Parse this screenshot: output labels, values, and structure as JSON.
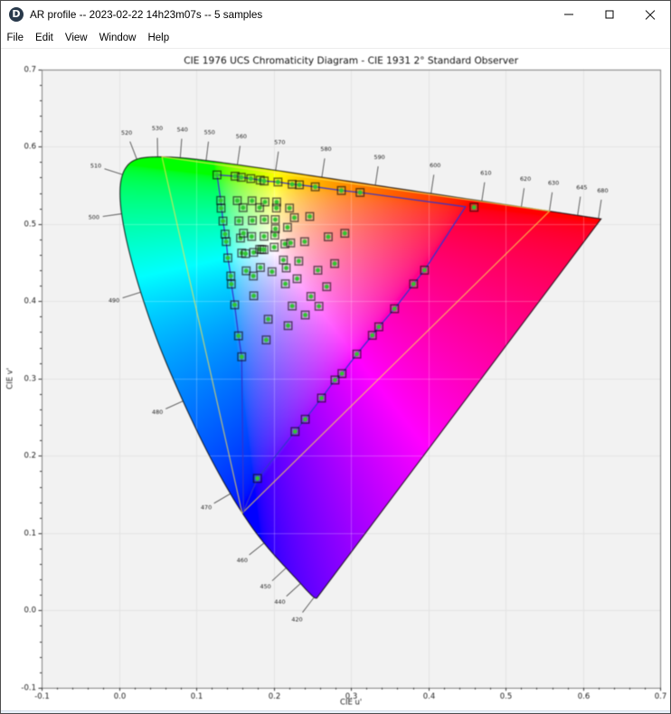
{
  "window": {
    "icon": "displaycal-logo",
    "icon_letter": "D",
    "title": "AR profile -- 2023-02-22 14h23m07s -- 5 samples",
    "controls": {
      "minimize": "Minimize",
      "maximize": "Maximize",
      "close": "Close"
    }
  },
  "menu": {
    "items": [
      "File",
      "Edit",
      "View",
      "Window",
      "Help"
    ]
  },
  "chart_data": {
    "type": "scatter",
    "title": "CIE 1976 UCS Chromaticity Diagram - CIE 1931 2° Standard Observer",
    "xlabel": "CIE u'",
    "ylabel": "CIE v'",
    "xlim": [
      -0.1,
      0.7
    ],
    "ylim": [
      -0.1,
      0.7
    ],
    "x_ticks": [
      -0.1,
      0.0,
      0.1,
      0.2,
      0.3,
      0.4,
      0.5,
      0.6,
      0.7
    ],
    "y_ticks": [
      -0.1,
      0.0,
      0.1,
      0.2,
      0.3,
      0.4,
      0.5,
      0.6,
      0.7
    ],
    "minor_ticks_per_major": 5,
    "grid": true,
    "wavelength_labels": [
      420,
      440,
      450,
      460,
      470,
      480,
      490,
      500,
      510,
      520,
      530,
      540,
      550,
      560,
      570,
      580,
      590,
      600,
      610,
      620,
      630,
      645,
      680
    ],
    "spectral_locus_uv": [
      [
        400,
        0.25576,
        0.01592
      ],
      [
        405,
        0.25526,
        0.01585
      ],
      [
        410,
        0.2545,
        0.01592
      ],
      [
        415,
        0.25365,
        0.01603
      ],
      [
        420,
        0.25222,
        0.01689
      ],
      [
        425,
        0.24963,
        0.01909
      ],
      [
        430,
        0.24608,
        0.02262
      ],
      [
        435,
        0.2411,
        0.02781
      ],
      [
        440,
        0.23475,
        0.03488
      ],
      [
        445,
        0.22664,
        0.04366
      ],
      [
        450,
        0.21612,
        0.05496
      ],
      [
        455,
        0.20328,
        0.06889
      ],
      [
        460,
        0.18766,
        0.08712
      ],
      [
        465,
        0.16898,
        0.1119
      ],
      [
        470,
        0.1441,
        0.15099
      ],
      [
        475,
        0.11467,
        0.20445
      ],
      [
        480,
        0.08281,
        0.27083
      ],
      [
        485,
        0.05214,
        0.34271
      ],
      [
        490,
        0.02815,
        0.41166
      ],
      [
        495,
        0.01187,
        0.46984
      ],
      [
        500,
        0.00346,
        0.51307
      ],
      [
        505,
        0.00142,
        0.54316
      ],
      [
        510,
        0.00463,
        0.56384
      ],
      [
        515,
        0.01227,
        0.57697
      ],
      [
        520,
        0.02312,
        0.58367
      ],
      [
        525,
        0.036,
        0.58614
      ],
      [
        530,
        0.05007,
        0.58675
      ],
      [
        535,
        0.06433,
        0.58653
      ],
      [
        540,
        0.07923,
        0.58562
      ],
      [
        545,
        0.09526,
        0.58411
      ],
      [
        550,
        0.1127,
        0.58207
      ],
      [
        555,
        0.13189,
        0.57955
      ],
      [
        560,
        0.15311,
        0.57658
      ],
      [
        565,
        0.1766,
        0.57319
      ],
      [
        570,
        0.20257,
        0.56936
      ],
      [
        575,
        0.23116,
        0.5651
      ],
      [
        580,
        0.26234,
        0.56044
      ],
      [
        585,
        0.29593,
        0.55542
      ],
      [
        590,
        0.33148,
        0.55012
      ],
      [
        595,
        0.36809,
        0.54463
      ],
      [
        600,
        0.40351,
        0.53934
      ],
      [
        605,
        0.43798,
        0.53419
      ],
      [
        610,
        0.46913,
        0.52956
      ],
      [
        615,
        0.4967,
        0.52544
      ],
      [
        620,
        0.52021,
        0.52192
      ],
      [
        625,
        0.53992,
        0.51898
      ],
      [
        630,
        0.55649,
        0.51651
      ],
      [
        635,
        0.57087,
        0.51435
      ],
      [
        640,
        0.58302,
        0.51254
      ],
      [
        645,
        0.59297,
        0.51105
      ],
      [
        650,
        0.60048,
        0.50993
      ],
      [
        655,
        0.60636,
        0.50905
      ],
      [
        660,
        0.6108,
        0.50838
      ],
      [
        665,
        0.61375,
        0.50794
      ],
      [
        670,
        0.61614,
        0.50758
      ],
      [
        675,
        0.61808,
        0.50729
      ],
      [
        680,
        0.61994,
        0.50701
      ],
      [
        685,
        0.62163,
        0.50675
      ],
      [
        690,
        0.62256,
        0.50662
      ],
      [
        695,
        0.6231,
        0.50653
      ],
      [
        700,
        0.62336,
        0.5065
      ]
    ],
    "rec2020_triangle_uv": [
      [
        0.5566,
        0.5165
      ],
      [
        0.0556,
        0.5868
      ],
      [
        0.1593,
        0.1258
      ]
    ],
    "measured_gamut_uv": [
      [
        0.1268,
        0.5634
      ],
      [
        0.1502,
        0.5617
      ],
      [
        0.1582,
        0.5603
      ],
      [
        0.1705,
        0.5586
      ],
      [
        0.1827,
        0.5567
      ],
      [
        0.1878,
        0.5555
      ],
      [
        0.2056,
        0.5542
      ],
      [
        0.224,
        0.5513
      ],
      [
        0.2333,
        0.5506
      ],
      [
        0.2538,
        0.548
      ],
      [
        0.2876,
        0.5432
      ],
      [
        0.3118,
        0.5407
      ],
      [
        0.448,
        0.5222
      ],
      [
        0.3951,
        0.4402
      ],
      [
        0.3809,
        0.4223
      ],
      [
        0.3563,
        0.3903
      ],
      [
        0.336,
        0.3669
      ],
      [
        0.3276,
        0.3559
      ],
      [
        0.3076,
        0.3316
      ],
      [
        0.2884,
        0.3064
      ],
      [
        0.2793,
        0.2981
      ],
      [
        0.2619,
        0.2747
      ],
      [
        0.2409,
        0.2473
      ],
      [
        0.2277,
        0.2314
      ],
      [
        0.1791,
        0.1708
      ],
      [
        0.161,
        0.128
      ],
      [
        0.1587,
        0.3281
      ],
      [
        0.1546,
        0.3552
      ],
      [
        0.1496,
        0.3953
      ],
      [
        0.1453,
        0.4221
      ],
      [
        0.1446,
        0.4326
      ],
      [
        0.1408,
        0.456
      ],
      [
        0.1387,
        0.4771
      ],
      [
        0.1372,
        0.4868
      ],
      [
        0.1345,
        0.5037
      ],
      [
        0.1328,
        0.5201
      ],
      [
        0.1316,
        0.5303
      ]
    ],
    "samples_uv": [
      [
        0.1268,
        0.5634
      ],
      [
        0.1502,
        0.5617
      ],
      [
        0.1582,
        0.5603
      ],
      [
        0.1705,
        0.5586
      ],
      [
        0.1827,
        0.5567
      ],
      [
        0.1878,
        0.5555
      ],
      [
        0.2056,
        0.5542
      ],
      [
        0.224,
        0.5513
      ],
      [
        0.2333,
        0.5506
      ],
      [
        0.2538,
        0.548
      ],
      [
        0.2876,
        0.5432
      ],
      [
        0.3118,
        0.5407
      ],
      [
        0.4591,
        0.5215
      ],
      [
        0.1316,
        0.5303
      ],
      [
        0.1321,
        0.5203
      ],
      [
        0.153,
        0.5301
      ],
      [
        0.1605,
        0.521
      ],
      [
        0.1721,
        0.5299
      ],
      [
        0.1819,
        0.5211
      ],
      [
        0.1888,
        0.5284
      ],
      [
        0.2039,
        0.5284
      ],
      [
        0.2036,
        0.5205
      ],
      [
        0.2205,
        0.5205
      ],
      [
        0.1345,
        0.5037
      ],
      [
        0.1551,
        0.5039
      ],
      [
        0.1725,
        0.5044
      ],
      [
        0.188,
        0.5056
      ],
      [
        0.2021,
        0.5056
      ],
      [
        0.2268,
        0.5081
      ],
      [
        0.2467,
        0.5096
      ],
      [
        0.1372,
        0.4868
      ],
      [
        0.1387,
        0.4771
      ],
      [
        0.1572,
        0.4817
      ],
      [
        0.161,
        0.488
      ],
      [
        0.1716,
        0.4837
      ],
      [
        0.1876,
        0.4839
      ],
      [
        0.2015,
        0.4854
      ],
      [
        0.2023,
        0.4937
      ],
      [
        0.2179,
        0.4956
      ],
      [
        0.2706,
        0.4833
      ],
      [
        0.292,
        0.4879
      ],
      [
        0.1408,
        0.456
      ],
      [
        0.1587,
        0.4623
      ],
      [
        0.1638,
        0.4615
      ],
      [
        0.1741,
        0.4632
      ],
      [
        0.182,
        0.4671
      ],
      [
        0.1848,
        0.467
      ],
      [
        0.1876,
        0.4667
      ],
      [
        0.2007,
        0.4699
      ],
      [
        0.2146,
        0.4741
      ],
      [
        0.222,
        0.4754
      ],
      [
        0.2401,
        0.4771
      ],
      [
        0.2126,
        0.4533
      ],
      [
        0.2325,
        0.4519
      ],
      [
        0.1829,
        0.4436
      ],
      [
        0.1645,
        0.4393
      ],
      [
        0.1979,
        0.4382
      ],
      [
        0.2163,
        0.443
      ],
      [
        0.2572,
        0.4401
      ],
      [
        0.2789,
        0.4487
      ],
      [
        0.1446,
        0.4326
      ],
      [
        0.1453,
        0.4221
      ],
      [
        0.1738,
        0.4326
      ],
      [
        0.2152,
        0.4225
      ],
      [
        0.2303,
        0.4291
      ],
      [
        0.2686,
        0.4188
      ],
      [
        0.1743,
        0.407
      ],
      [
        0.2482,
        0.4062
      ],
      [
        0.1496,
        0.3953
      ],
      [
        0.224,
        0.3938
      ],
      [
        0.2586,
        0.3935
      ],
      [
        0.2409,
        0.3822
      ],
      [
        0.193,
        0.3767
      ],
      [
        0.2187,
        0.3684
      ],
      [
        0.1546,
        0.3552
      ],
      [
        0.1904,
        0.3499
      ],
      [
        0.1587,
        0.3281
      ],
      [
        0.3951,
        0.4402
      ],
      [
        0.3809,
        0.4223
      ],
      [
        0.3563,
        0.3903
      ],
      [
        0.336,
        0.3669
      ],
      [
        0.3276,
        0.3559
      ],
      [
        0.3076,
        0.3316
      ],
      [
        0.2884,
        0.3064
      ],
      [
        0.2793,
        0.2981
      ],
      [
        0.2619,
        0.2747
      ],
      [
        0.2409,
        0.2473
      ],
      [
        0.2277,
        0.2314
      ],
      [
        0.1791,
        0.1708
      ]
    ],
    "colors": {
      "figure_bg": "#ffffff",
      "plot_bg": "#f2f2f2",
      "grid_below": "#e3e3e3",
      "grid_above": "rgba(255,255,255,0.25)",
      "spine": "#7f7f7f",
      "tick": "#333333",
      "tick_label": "#1c1c1c",
      "title": "#111111",
      "locus_outline": "rgba(10,10,10,0.85)",
      "wavelength_line": "#3c3c3c",
      "wavelength_label": "#1c1c1c",
      "rec2020_line": "#ffe34d",
      "gamut_line": "#3232cf",
      "marker_edge": "rgba(0,0,0,0.58)",
      "marker_fill": "rgba(255,255,255,0.15)",
      "marker_dot": "#2fc42f"
    }
  }
}
